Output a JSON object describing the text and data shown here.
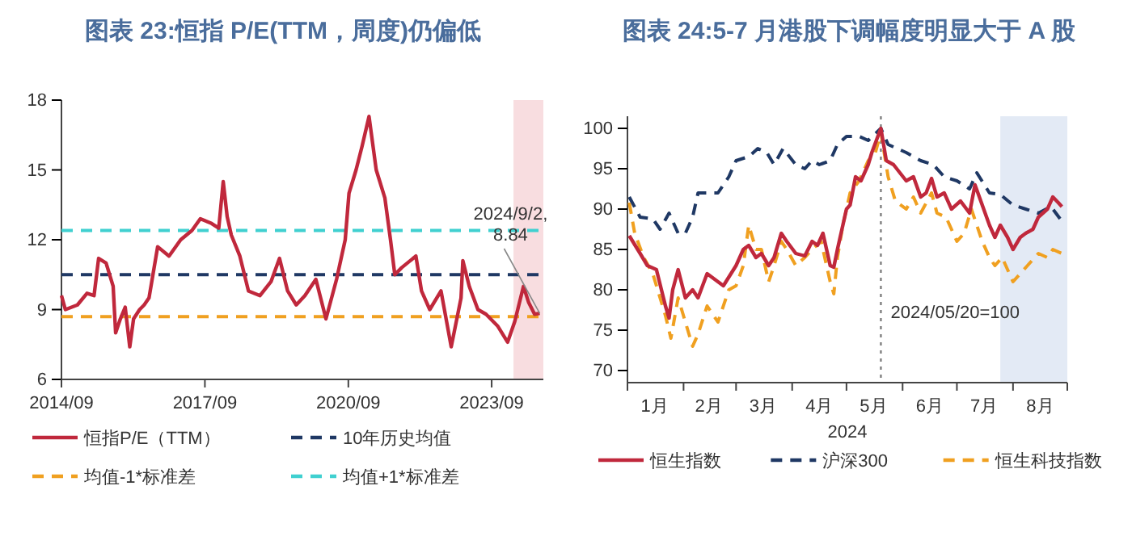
{
  "chart_data": [
    {
      "type": "line",
      "title": "图表 23:恒指 P/E(TTM，周度)仍偏低",
      "xlim": [
        "2014-09-01",
        "2024-09-30"
      ],
      "ylim": [
        6,
        18
      ],
      "yticks": [
        6,
        9,
        12,
        15,
        18
      ],
      "xticks": [
        {
          "value": "2014-09-01",
          "label": "2014/09"
        },
        {
          "value": "2017-09-01",
          "label": "2017/09"
        },
        {
          "value": "2020-09-01",
          "label": "2020/09"
        },
        {
          "value": "2023-09-01",
          "label": "2023/09"
        }
      ],
      "grid": false,
      "legend": "bottom",
      "marker": "none",
      "bands": [
        {
          "axis": "x",
          "from": "2024-02-15",
          "to": "2024-09-30",
          "color": "#f8dde0"
        }
      ],
      "annotations": [
        {
          "text": "2024/9/2,\n8.84",
          "x": "2024-09-02",
          "y": 8.84
        }
      ],
      "series": [
        {
          "name": "恒指P/E（TTM）",
          "color": "#c0283c",
          "line_style": "solid",
          "x": [
            "2014-09-01",
            "2014-10-01",
            "2015-01-01",
            "2015-03-15",
            "2015-05-08",
            "2015-06-12",
            "2015-08-08",
            "2015-10-01",
            "2015-10-20",
            "2015-11-25",
            "2016-01-01",
            "2016-02-05",
            "2016-03-05",
            "2016-04-20",
            "2016-05-25",
            "2016-07-01",
            "2016-09-05",
            "2016-12-01",
            "2017-02-28",
            "2017-05-25",
            "2017-07-28",
            "2017-10-22",
            "2017-12-16",
            "2018-01-19",
            "2018-02-18",
            "2018-03-22",
            "2018-05-26",
            "2018-07-31",
            "2018-10-27",
            "2019-01-19",
            "2019-03-25",
            "2019-05-26",
            "2019-07-31",
            "2019-10-05",
            "2019-12-28",
            "2020-03-14",
            "2020-06-03",
            "2020-08-08",
            "2020-09-06",
            "2020-10-30",
            "2020-12-14",
            "2021-02-06",
            "2021-04-02",
            "2021-06-07",
            "2021-07-20",
            "2021-08-22",
            "2021-10-13",
            "2022-01-30",
            "2022-03-14",
            "2022-05-16",
            "2022-08-10",
            "2022-10-27",
            "2023-01-10",
            "2023-01-24",
            "2023-03-14",
            "2023-05-19",
            "2023-07-20",
            "2023-10-16",
            "2024-01-01",
            "2024-02-25",
            "2024-05-01",
            "2024-06-10",
            "2024-07-25",
            "2024-09-02"
          ],
          "values": [
            9.6,
            9.0,
            9.2,
            9.7,
            9.6,
            11.2,
            11.0,
            10.0,
            8.0,
            8.6,
            9.1,
            7.4,
            8.6,
            9.0,
            9.2,
            9.5,
            11.7,
            11.3,
            12.0,
            12.4,
            12.9,
            12.7,
            12.5,
            14.5,
            13.0,
            12.2,
            11.3,
            9.8,
            9.6,
            10.2,
            11.2,
            9.8,
            9.2,
            9.6,
            10.3,
            8.6,
            10.3,
            12.0,
            14.0,
            15.0,
            16.0,
            17.3,
            15.0,
            13.8,
            12.0,
            10.5,
            10.8,
            11.3,
            9.8,
            9.0,
            9.8,
            7.4,
            9.5,
            11.1,
            10.0,
            9.0,
            8.8,
            8.3,
            7.6,
            8.5,
            10.0,
            9.3,
            8.8,
            8.84
          ]
        },
        {
          "name": "10年历史均值",
          "color": "#1f3864",
          "line_style": "dashed",
          "x": [
            "2014-09-01",
            "2024-09-30"
          ],
          "values": [
            10.5,
            10.5
          ]
        },
        {
          "name": "均值-1*标准差",
          "color": "#f0a020",
          "line_style": "dashed",
          "x": [
            "2014-09-01",
            "2024-09-30"
          ],
          "values": [
            8.7,
            8.7
          ]
        },
        {
          "name": "均值+1*标准差",
          "color": "#40d0d0",
          "line_style": "dashed",
          "x": [
            "2014-09-01",
            "2024-09-30"
          ],
          "values": [
            12.4,
            12.4
          ]
        }
      ]
    },
    {
      "type": "line",
      "title": "图表 24:5-7 月港股下调幅度明显大于 A 股",
      "xlabel": "2024",
      "xlim": [
        "2024-01-01",
        "2024-08-31"
      ],
      "ylim": [
        68.5,
        101.5
      ],
      "yticks": [
        70,
        75,
        80,
        85,
        90,
        95,
        100
      ],
      "xticks": [
        {
          "value": "2024-01-01",
          "label": null
        },
        {
          "value": "2024-02-01",
          "label": null
        },
        {
          "value": "2024-03-01",
          "label": null
        },
        {
          "value": "2024-04-01",
          "label": null
        },
        {
          "value": "2024-05-01",
          "label": null
        },
        {
          "value": "2024-06-01",
          "label": null
        },
        {
          "value": "2024-07-01",
          "label": null
        },
        {
          "value": "2024-08-01",
          "label": null
        },
        {
          "value": "2024-08-31",
          "label": null
        },
        {
          "value": "2024-01-16",
          "label": "1月"
        },
        {
          "value": "2024-02-15",
          "label": "2月"
        },
        {
          "value": "2024-03-16",
          "label": "3月"
        },
        {
          "value": "2024-04-16",
          "label": "4月"
        },
        {
          "value": "2024-05-16",
          "label": "5月"
        },
        {
          "value": "2024-06-16",
          "label": "6月"
        },
        {
          "value": "2024-07-16",
          "label": "7月"
        },
        {
          "value": "2024-08-16",
          "label": "8月"
        }
      ],
      "grid": false,
      "legend": "bottom",
      "marker": "none",
      "bands": [
        {
          "axis": "x",
          "from": "2024-07-25",
          "to": "2024-08-31",
          "color": "#e3eaf5"
        }
      ],
      "ref_lines": [
        {
          "axis": "x",
          "value": "2024-05-20",
          "label": "2024/05/20=100",
          "color": "#808080",
          "line_style": "dotted"
        }
      ],
      "series": [
        {
          "name": "恒生指数",
          "color": "#c0283c",
          "line_style": "solid",
          "x": [
            "2024-01-02",
            "2024-01-08",
            "2024-01-12",
            "2024-01-17",
            "2024-01-22",
            "2024-01-24",
            "2024-01-26",
            "2024-01-29",
            "2024-02-02",
            "2024-02-06",
            "2024-02-09",
            "2024-02-14",
            "2024-02-20",
            "2024-02-23",
            "2024-03-01",
            "2024-03-05",
            "2024-03-08",
            "2024-03-12",
            "2024-03-15",
            "2024-03-19",
            "2024-03-22",
            "2024-03-26",
            "2024-03-29",
            "2024-04-03",
            "2024-04-08",
            "2024-04-12",
            "2024-04-15",
            "2024-04-18",
            "2024-04-22",
            "2024-04-24",
            "2024-04-26",
            "2024-04-29",
            "2024-05-01",
            "2024-05-03",
            "2024-05-06",
            "2024-05-09",
            "2024-05-13",
            "2024-05-15",
            "2024-05-20",
            "2024-05-23",
            "2024-05-27",
            "2024-06-03",
            "2024-06-07",
            "2024-06-11",
            "2024-06-14",
            "2024-06-17",
            "2024-06-20",
            "2024-06-24",
            "2024-06-28",
            "2024-07-03",
            "2024-07-08",
            "2024-07-11",
            "2024-07-15",
            "2024-07-19",
            "2024-07-22",
            "2024-07-25",
            "2024-07-29",
            "2024-08-01",
            "2024-08-05",
            "2024-08-08",
            "2024-08-12",
            "2024-08-15",
            "2024-08-20",
            "2024-08-23",
            "2024-08-26",
            "2024-08-28"
          ],
          "values": [
            86.7,
            84.5,
            83,
            82.5,
            78,
            76.5,
            80,
            82.5,
            79,
            80,
            79,
            82,
            81,
            80.5,
            83,
            85,
            85.5,
            84,
            84.5,
            83,
            84,
            87,
            86,
            84.5,
            84.2,
            86,
            85.5,
            87,
            83,
            82.8,
            85,
            88,
            90,
            90.5,
            94,
            93.5,
            95.5,
            97,
            100,
            96,
            95.5,
            93.5,
            94,
            91.5,
            92,
            93.8,
            91.5,
            92,
            90,
            91,
            89.5,
            93,
            90.5,
            88,
            86.5,
            88,
            86.5,
            85,
            86.5,
            87,
            87.5,
            89,
            90,
            91.5,
            90.8,
            90.3
          ]
        },
        {
          "name": "沪深300",
          "color": "#1f3864",
          "line_style": "dashed",
          "x": [
            "2024-01-02",
            "2024-01-08",
            "2024-01-15",
            "2024-01-19",
            "2024-01-24",
            "2024-01-29",
            "2024-02-02",
            "2024-02-06",
            "2024-02-09",
            "2024-02-20",
            "2024-02-26",
            "2024-03-01",
            "2024-03-08",
            "2024-03-13",
            "2024-03-18",
            "2024-03-22",
            "2024-03-27",
            "2024-04-03",
            "2024-04-08",
            "2024-04-12",
            "2024-04-16",
            "2024-04-22",
            "2024-04-26",
            "2024-05-01",
            "2024-05-08",
            "2024-05-13",
            "2024-05-20",
            "2024-05-24",
            "2024-06-03",
            "2024-06-11",
            "2024-06-18",
            "2024-06-24",
            "2024-07-01",
            "2024-07-08",
            "2024-07-12",
            "2024-07-19",
            "2024-07-25",
            "2024-08-01",
            "2024-08-08",
            "2024-08-15",
            "2024-08-22",
            "2024-08-28"
          ],
          "values": [
            91.5,
            89,
            88.8,
            87.5,
            89.5,
            87,
            87,
            89,
            92,
            92,
            94,
            96,
            96.5,
            97.5,
            97,
            95.5,
            97.5,
            95.5,
            95,
            96,
            95.5,
            96,
            98,
            99,
            99,
            98.5,
            100,
            98,
            97,
            96,
            95.5,
            94,
            93.5,
            92.5,
            94.5,
            92,
            91.8,
            90.5,
            90,
            89.5,
            90.3,
            88.5
          ]
        },
        {
          "name": "恒生科技指数",
          "color": "#f0a020",
          "line_style": "dashed",
          "x": [
            "2024-01-02",
            "2024-01-05",
            "2024-01-10",
            "2024-01-15",
            "2024-01-22",
            "2024-01-25",
            "2024-01-29",
            "2024-02-02",
            "2024-02-06",
            "2024-02-09",
            "2024-02-14",
            "2024-02-20",
            "2024-02-26",
            "2024-03-01",
            "2024-03-05",
            "2024-03-08",
            "2024-03-12",
            "2024-03-15",
            "2024-03-19",
            "2024-03-22",
            "2024-03-26",
            "2024-03-29",
            "2024-04-03",
            "2024-04-08",
            "2024-04-12",
            "2024-04-17",
            "2024-04-22",
            "2024-04-24",
            "2024-04-26",
            "2024-04-29",
            "2024-05-03",
            "2024-05-08",
            "2024-05-13",
            "2024-05-17",
            "2024-05-20",
            "2024-05-24",
            "2024-05-28",
            "2024-06-03",
            "2024-06-07",
            "2024-06-11",
            "2024-06-17",
            "2024-06-20",
            "2024-06-25",
            "2024-07-01",
            "2024-07-05",
            "2024-07-09",
            "2024-07-15",
            "2024-07-19",
            "2024-07-22",
            "2024-07-26",
            "2024-08-01",
            "2024-08-05",
            "2024-08-09",
            "2024-08-15",
            "2024-08-20",
            "2024-08-23",
            "2024-08-28"
          ],
          "values": [
            90.8,
            87,
            84,
            82,
            76.8,
            74,
            79,
            76,
            73,
            74.5,
            78,
            76,
            80,
            80.5,
            83,
            88,
            85,
            85,
            81,
            83,
            86,
            85,
            83,
            84,
            85,
            86,
            81,
            79.5,
            84,
            88,
            92,
            93.5,
            96,
            97,
            99.5,
            94,
            91,
            90,
            91.5,
            89.5,
            92,
            89.5,
            89,
            86,
            87,
            90,
            86,
            84,
            83,
            84,
            81,
            82,
            83,
            84.5,
            84,
            85,
            84.5
          ]
        }
      ]
    }
  ]
}
